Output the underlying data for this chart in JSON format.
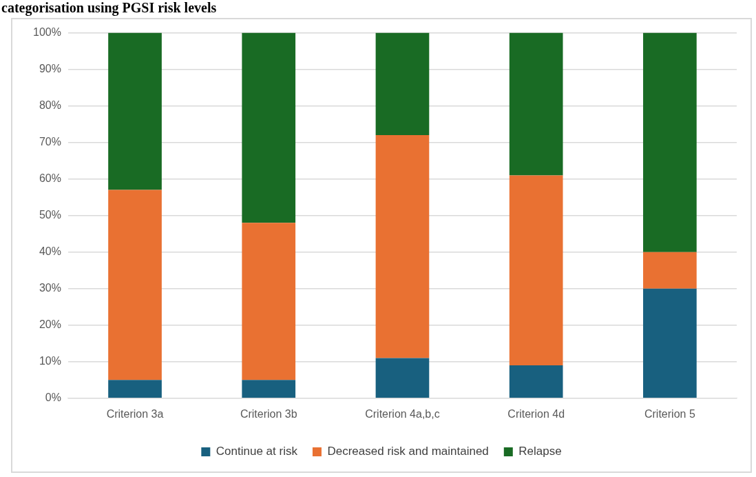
{
  "chart_data": {
    "type": "bar",
    "title": "categorisation using PGSI risk levels",
    "categories": [
      "Criterion 3a",
      "Criterion 3b",
      "Criterion 4a,b,c",
      "Criterion 4d",
      "Criterion 5"
    ],
    "series": [
      {
        "name": "Continue at risk",
        "color": "#18607f",
        "values": [
          5,
          5,
          11,
          9,
          30
        ]
      },
      {
        "name": "Decreased risk and maintained",
        "color": "#e97132",
        "values": [
          52,
          43,
          61,
          52,
          10
        ]
      },
      {
        "name": "Relapse",
        "color": "#196b24",
        "values": [
          43,
          52,
          28,
          39,
          60
        ]
      }
    ],
    "stacked": true,
    "ylim": [
      0,
      100
    ],
    "yticks": [
      {
        "value": 0,
        "label": "0%"
      },
      {
        "value": 10,
        "label": "10%"
      },
      {
        "value": 20,
        "label": "20%"
      },
      {
        "value": 30,
        "label": "30%"
      },
      {
        "value": 40,
        "label": "40%"
      },
      {
        "value": 50,
        "label": "50%"
      },
      {
        "value": 60,
        "label": "60%"
      },
      {
        "value": 70,
        "label": "70%"
      },
      {
        "value": 80,
        "label": "80%"
      },
      {
        "value": 90,
        "label": "90%"
      },
      {
        "value": 100,
        "label": "100%"
      }
    ],
    "grid": "y",
    "legend": "bottom"
  }
}
